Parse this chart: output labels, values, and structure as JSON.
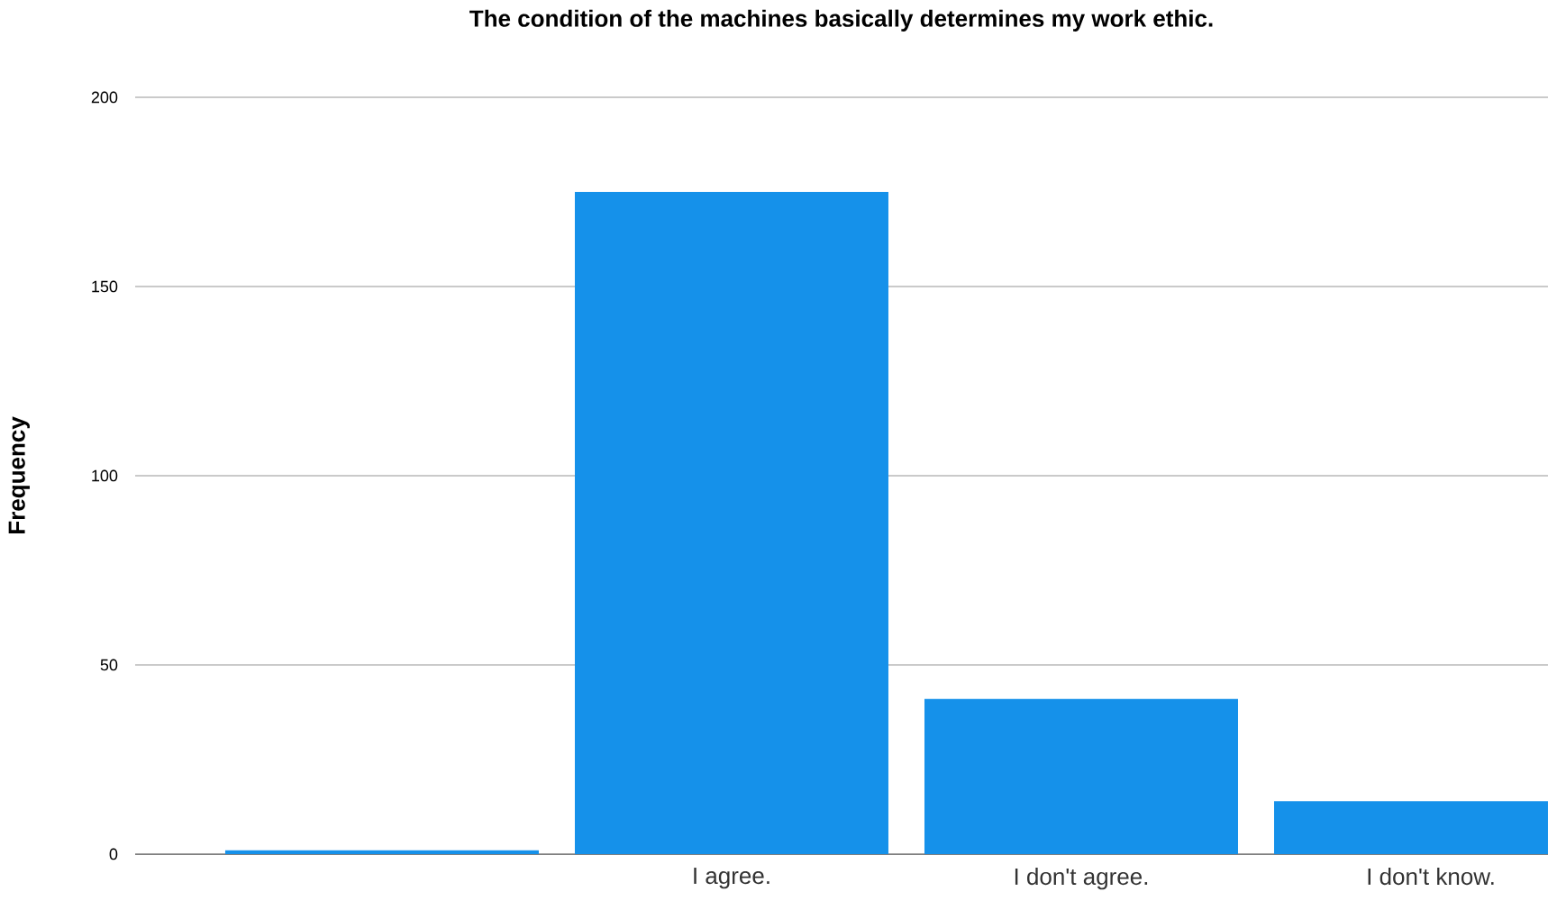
{
  "chart_data": {
    "type": "bar",
    "title": "The condition of the machines basically determines my work ethic.",
    "ylabel": "Frequency",
    "categories": [
      null,
      "I agree.",
      "I don't agree.",
      "I don't know."
    ],
    "values": [
      1,
      175,
      41,
      14
    ],
    "color": "#1591ea",
    "ylim": [
      0,
      200
    ],
    "yticks": [
      0,
      50,
      100,
      150,
      200
    ],
    "grid": "y"
  }
}
